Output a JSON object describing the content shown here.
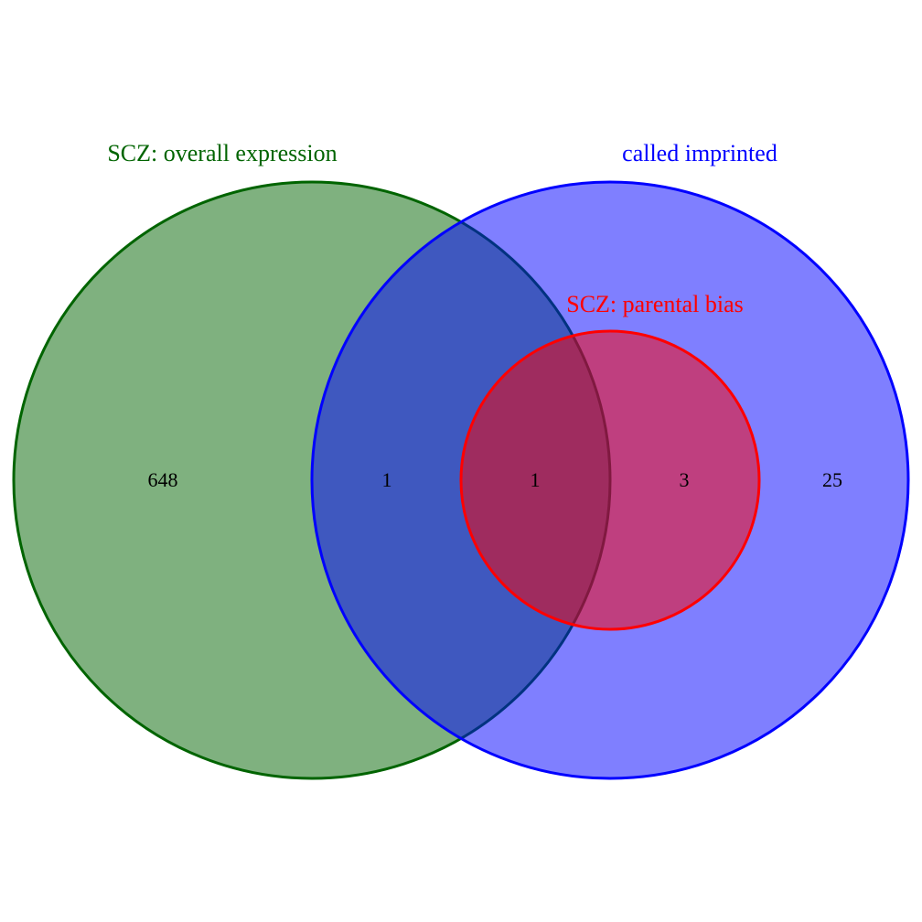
{
  "venn": {
    "colors": {
      "overall_expression": "#006400",
      "called_imprinted": "#0000FF",
      "parental_bias": "#FF0000"
    },
    "sets": {
      "overall_expression": {
        "label": "SCZ: overall expression"
      },
      "called_imprinted": {
        "label": "called imprinted"
      },
      "parental_bias": {
        "label": "SCZ: parental bias"
      }
    },
    "regions": {
      "overall_expression_only": "648",
      "overall_expression_and_called_imprinted": "1",
      "all_three": "1",
      "called_imprinted_and_parental_bias": "3",
      "called_imprinted_only": "25"
    }
  }
}
